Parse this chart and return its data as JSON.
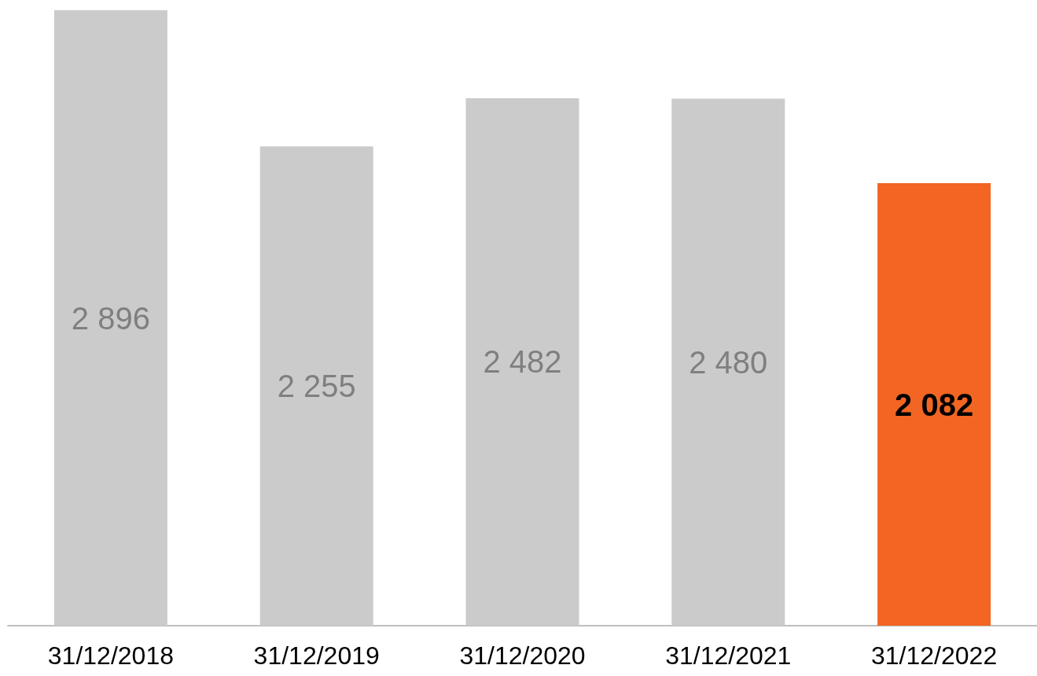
{
  "chart_data": {
    "type": "bar",
    "categories": [
      "31/12/2018",
      "31/12/2019",
      "31/12/2020",
      "31/12/2021",
      "31/12/2022"
    ],
    "values": [
      2896,
      2255,
      2482,
      2480,
      2082
    ],
    "colors": [
      "#cbcbcb",
      "#cbcbcb",
      "#cbcbcb",
      "#cbcbcb",
      "#f26522"
    ],
    "value_labels": [
      "2 896",
      "2 255",
      "2 482",
      "2 480",
      "2 082"
    ]
  }
}
